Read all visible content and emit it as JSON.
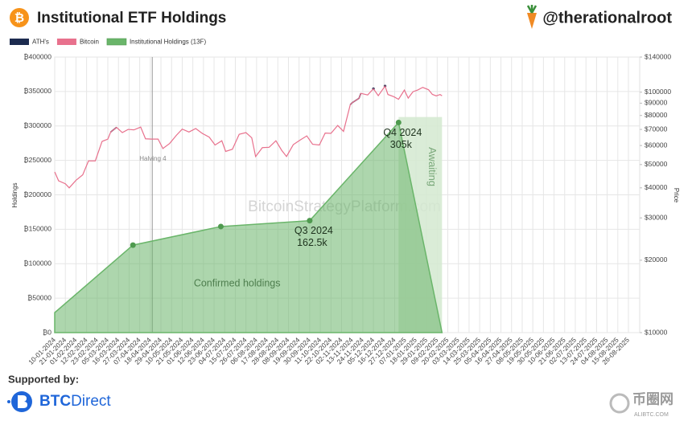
{
  "header": {
    "logo_symbol": "₿",
    "title": "Institutional ETF Holdings",
    "handle": "@therationalroot"
  },
  "chart_data": {
    "type": "line",
    "ylabel": "Holdings",
    "y2label": "Price",
    "xlim": [
      "10-01-2024",
      "26-08-2025"
    ],
    "xticks": [
      "10-01-2024",
      "21-01-2024",
      "01-02-2024",
      "12-02-2024",
      "23-02-2024",
      "05-03-2024",
      "16-03-2024",
      "27-03-2024",
      "07-04-2024",
      "18-04-2024",
      "29-04-2024",
      "10-05-2024",
      "21-05-2024",
      "01-06-2024",
      "12-06-2024",
      "23-06-2024",
      "04-07-2024",
      "15-07-2024",
      "26-07-2024",
      "06-08-2024",
      "17-08-2024",
      "28-08-2024",
      "08-09-2024",
      "19-09-2024",
      "30-09-2024",
      "11-10-2024",
      "22-10-2024",
      "02-11-2024",
      "13-11-2024",
      "24-11-2024",
      "05-12-2024",
      "16-12-2024",
      "27-12-2024",
      "07-01-2025",
      "18-01-2025",
      "29-01-2025",
      "09-02-2025",
      "20-02-2025",
      "03-03-2025",
      "14-03-2025",
      "25-03-2025",
      "05-04-2025",
      "16-04-2025",
      "27-04-2025",
      "08-05-2025",
      "19-05-2025",
      "30-05-2025",
      "10-06-2025",
      "21-06-2025",
      "02-07-2025",
      "13-07-2025",
      "24-07-2025",
      "04-08-2025",
      "15-08-2025",
      "26-08-2025"
    ],
    "ylim": [
      0,
      400000
    ],
    "yticks": [
      {
        "value": 0,
        "label": "₿0"
      },
      {
        "value": 50000,
        "label": "₿50000"
      },
      {
        "value": 100000,
        "label": "₿100000"
      },
      {
        "value": 150000,
        "label": "₿150000"
      },
      {
        "value": 200000,
        "label": "₿200000"
      },
      {
        "value": 250000,
        "label": "₿250000"
      },
      {
        "value": 300000,
        "label": "₿300000"
      },
      {
        "value": 350000,
        "label": "₿350000"
      },
      {
        "value": 400000,
        "label": "₿400000"
      }
    ],
    "y2lim": [
      10000,
      140000
    ],
    "y2scale": "log",
    "y2ticks": [
      {
        "value": 10000,
        "label": "$10000"
      },
      {
        "value": 20000,
        "label": "$20000"
      },
      {
        "value": 30000,
        "label": "$30000"
      },
      {
        "value": 40000,
        "label": "$40000"
      },
      {
        "value": 50000,
        "label": "$50000"
      },
      {
        "value": 60000,
        "label": "$60000"
      },
      {
        "value": 70000,
        "label": "$70000"
      },
      {
        "value": 80000,
        "label": "$80000"
      },
      {
        "value": 90000,
        "label": "$90000"
      },
      {
        "value": 100000,
        "label": "$100000"
      },
      {
        "value": 140000,
        "label": "$140000"
      }
    ],
    "grid": true,
    "series": [
      {
        "name": "ATH's",
        "type": "line",
        "axis": "y2",
        "color": "#1c2b4f",
        "x": [
          "08-03-2024",
          "14-03-2024",
          "26-03-2024",
          "11-11-2024",
          "13-11-2024",
          "20-11-2024",
          "22-11-2024",
          "29-11-2024",
          "05-12-2024",
          "10-12-2024",
          "17-12-2024"
        ],
        "values": [
          68300,
          71400,
          null,
          88700,
          90400,
          94300,
          98900,
          null,
          103300,
          null,
          106000
        ]
      },
      {
        "name": "Bitcoin",
        "type": "line",
        "axis": "y2",
        "color": "#e8718d",
        "x": [
          "10-01-2024",
          "14-01-2024",
          "21-01-2024",
          "25-01-2024",
          "01-02-2024",
          "08-02-2024",
          "14-02-2024",
          "21-02-2024",
          "28-02-2024",
          "05-03-2024",
          "08-03-2024",
          "14-03-2024",
          "20-03-2024",
          "26-03-2024",
          "01-04-2024",
          "08-04-2024",
          "13-04-2024",
          "19-04-2024",
          "26-04-2024",
          "01-05-2024",
          "08-05-2024",
          "15-05-2024",
          "21-05-2024",
          "28-05-2024",
          "04-06-2024",
          "11-06-2024",
          "18-06-2024",
          "24-06-2024",
          "01-07-2024",
          "05-07-2024",
          "12-07-2024",
          "19-07-2024",
          "26-07-2024",
          "01-08-2024",
          "05-08-2024",
          "12-08-2024",
          "19-08-2024",
          "26-08-2024",
          "01-09-2024",
          "06-09-2024",
          "13-09-2024",
          "20-09-2024",
          "27-09-2024",
          "03-10-2024",
          "10-10-2024",
          "16-10-2024",
          "22-10-2024",
          "29-10-2024",
          "04-11-2024",
          "11-11-2024",
          "13-11-2024",
          "20-11-2024",
          "22-11-2024",
          "29-11-2024",
          "05-12-2024",
          "10-12-2024",
          "17-12-2024",
          "20-12-2024",
          "26-12-2024",
          "31-12-2024",
          "06-01-2025",
          "10-01-2025",
          "15-01-2025",
          "20-01-2025",
          "25-01-2025",
          "31-01-2025",
          "04-02-2025",
          "08-02-2025",
          "12-02-2025",
          "14-02-2025"
        ],
        "values": [
          46600,
          42800,
          41600,
          40000,
          43000,
          45300,
          51800,
          51800,
          62400,
          63800,
          68300,
          71400,
          67900,
          70000,
          69700,
          71600,
          64000,
          63800,
          63800,
          58300,
          61200,
          66200,
          70200,
          68300,
          70600,
          67300,
          65000,
          60300,
          62800,
          56700,
          57900,
          66800,
          67900,
          64600,
          54000,
          58800,
          59000,
          62800,
          57300,
          54000,
          60500,
          63200,
          65800,
          60700,
          60300,
          67600,
          67400,
          72700,
          68700,
          88700,
          90400,
          94300,
          98900,
          97400,
          103300,
          96700,
          106000,
          97800,
          95800,
          93400,
          102000,
          94500,
          100500,
          102200,
          104700,
          102400,
          97900,
          96500,
          97800,
          96600
        ]
      },
      {
        "name": "Institutional Holdings (13F)",
        "type": "area",
        "axis": "y",
        "color": "#6ab56a",
        "x": [
          "10-01-2024",
          "31-03-2024",
          "30-06-2024",
          "30-09-2024",
          "31-12-2024",
          "14-02-2025"
        ],
        "values": [
          29000,
          127000,
          154000,
          162500,
          305000,
          0
        ],
        "value_labels": [
          null,
          null,
          null,
          "162.5k",
          "305k",
          null
        ],
        "point_titles": [
          null,
          null,
          null,
          "Q3 2024",
          "Q4 2024",
          null
        ]
      }
    ],
    "awaiting": {
      "name": "Awaiting",
      "x": [
        "31-12-2024",
        "14-02-2025"
      ],
      "values": [
        313000,
        313000
      ],
      "color": "#d3e9d0"
    },
    "area_label": "Confirmed holdings",
    "annotations": [
      {
        "text": "Halving 4",
        "x": "20-04-2024"
      }
    ],
    "watermark": "BitcoinStrategyPlatform.com"
  },
  "footer": {
    "supported_by": "Supported by:",
    "sponsor_bold": "BTC",
    "sponsor_rest": "Direct",
    "site_name": "币圈网",
    "site_url": "ALIBTC.COM"
  }
}
